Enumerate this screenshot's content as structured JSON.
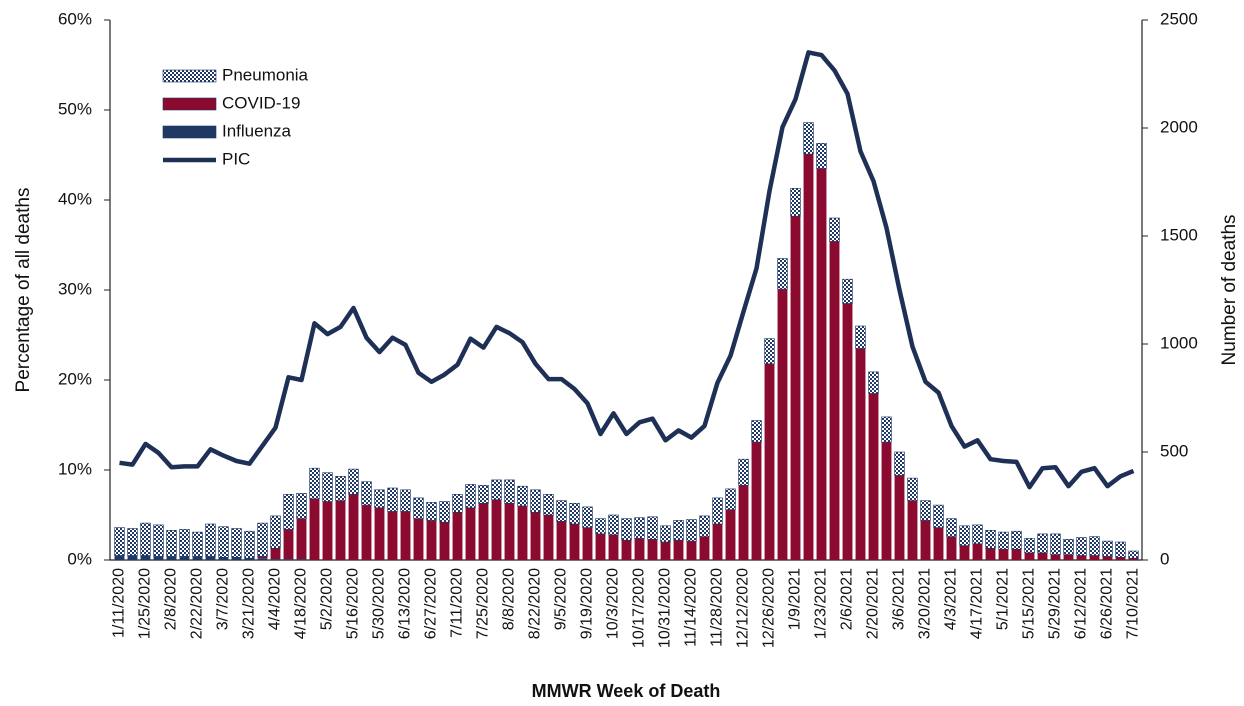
{
  "chart_data": {
    "type": "bar",
    "stacked": true,
    "x_label": "MMWR Week of Death",
    "y_label": "Percentage of all deaths",
    "y2_label": "Number of deaths",
    "categories": [
      "1/11/2020",
      null,
      "1/25/2020",
      null,
      "2/8/2020",
      null,
      "2/22/2020",
      null,
      "3/7/2020",
      null,
      "3/21/2020",
      null,
      "4/4/2020",
      null,
      "4/18/2020",
      null,
      "5/2/2020",
      null,
      "5/16/2020",
      null,
      "5/30/2020",
      null,
      "6/13/2020",
      null,
      "6/27/2020",
      null,
      "7/11/2020",
      null,
      "7/25/2020",
      null,
      "8/8/2020",
      null,
      "8/22/2020",
      null,
      "9/5/2020",
      null,
      "9/19/2020",
      null,
      "10/3/2020",
      null,
      "10/17/2020",
      null,
      "10/31/2020",
      null,
      "11/14/2020",
      null,
      "11/28/2020",
      null,
      "12/12/2020",
      null,
      "12/26/2020",
      null,
      "1/9/2021",
      null,
      "1/23/2021",
      null,
      "2/6/2021",
      null,
      "2/20/2021",
      null,
      "3/6/2021",
      null,
      "3/20/2021",
      null,
      "4/3/2021",
      null,
      "4/17/2021",
      null,
      "5/1/2021",
      null,
      "5/15/2021",
      null,
      "5/29/2021",
      null,
      "6/12/2021",
      null,
      "6/26/2021",
      null,
      "7/10/2021"
    ],
    "series": [
      {
        "name": "Influenza",
        "type": "bar",
        "color": "#1f3864",
        "values": [
          0.5,
          0.5,
          0.5,
          0.4,
          0.4,
          0.4,
          0.4,
          0.4,
          0.3,
          0.3,
          0.2,
          0.2,
          0.1,
          0.1,
          0.1,
          0,
          0,
          0,
          0,
          0,
          0,
          0,
          0,
          0,
          0,
          0,
          0,
          0,
          0,
          0,
          0,
          0,
          0,
          0,
          0,
          0,
          0,
          0,
          0,
          0,
          0,
          0,
          0,
          0,
          0,
          0,
          0,
          0,
          0,
          0,
          0,
          0,
          0,
          0,
          0,
          0,
          0,
          0,
          0,
          0,
          0,
          0,
          0,
          0,
          0,
          0,
          0,
          0,
          0,
          0,
          0,
          0,
          0,
          0,
          0,
          0,
          0,
          0,
          0
        ]
      },
      {
        "name": "COVID-19",
        "type": "bar",
        "color": "#8b0a2f",
        "values": [
          0,
          0,
          0,
          0,
          0,
          0,
          0,
          0,
          0,
          0,
          0,
          0.2,
          1.2,
          3.3,
          4.5,
          6.8,
          6.5,
          6.6,
          7.3,
          6.1,
          5.8,
          5.4,
          5.4,
          4.6,
          4.4,
          4.2,
          5.3,
          5.8,
          6.3,
          6.7,
          6.3,
          6.0,
          5.3,
          5.0,
          4.3,
          4.0,
          3.6,
          2.9,
          2.8,
          2.2,
          2.4,
          2.3,
          2.0,
          2.2,
          2.1,
          2.6,
          4.0,
          5.6,
          8.3,
          13.1,
          21.8,
          30.1,
          38.2,
          45.1,
          43.5,
          35.4,
          28.5,
          23.5,
          18.5,
          13.1,
          9.4,
          6.6,
          4.4,
          3.6,
          2.6,
          1.6,
          1.8,
          1.3,
          1.2,
          1.2,
          0.8,
          0.8,
          0.6,
          0.6,
          0.5,
          0.5,
          0.4,
          0.3,
          0.2
        ]
      },
      {
        "name": "Pneumonia",
        "type": "bar",
        "color": "#1f3864",
        "pattern": "checkered",
        "values": [
          3.1,
          3.0,
          3.6,
          3.5,
          2.9,
          3.0,
          2.7,
          3.6,
          3.4,
          3.2,
          3.0,
          3.7,
          3.6,
          3.9,
          2.8,
          3.4,
          3.2,
          2.7,
          2.8,
          2.6,
          2.0,
          2.6,
          2.4,
          2.3,
          2.0,
          2.3,
          2.0,
          2.6,
          2.0,
          2.2,
          2.6,
          2.2,
          2.5,
          2.3,
          2.3,
          2.3,
          2.3,
          1.7,
          2.2,
          2.4,
          2.3,
          2.5,
          1.8,
          2.2,
          2.4,
          2.3,
          2.9,
          2.3,
          2.9,
          2.4,
          2.8,
          3.4,
          3.1,
          3.5,
          2.8,
          2.6,
          2.7,
          2.5,
          2.4,
          2.8,
          2.6,
          2.5,
          2.2,
          2.5,
          2.0,
          2.2,
          2.1,
          2.0,
          1.9,
          2.0,
          1.6,
          2.1,
          2.3,
          1.7,
          2.0,
          2.1,
          1.7,
          1.7,
          0.8
        ]
      },
      {
        "name": "PIC",
        "type": "line",
        "color": "#1f3057",
        "values": [
          10.8,
          10.6,
          12.9,
          11.9,
          10.3,
          10.4,
          10.4,
          12.3,
          11.6,
          11.0,
          10.7,
          12.7,
          14.7,
          20.3,
          20.0,
          26.3,
          25.1,
          25.9,
          28.0,
          24.7,
          23.1,
          24.7,
          23.9,
          20.8,
          19.8,
          20.6,
          21.7,
          24.6,
          23.6,
          25.9,
          25.2,
          24.2,
          21.8,
          20.1,
          20.1,
          19.0,
          17.4,
          14.0,
          16.3,
          14.0,
          15.3,
          15.7,
          13.3,
          14.4,
          13.6,
          14.9,
          19.7,
          22.7,
          27.6,
          32.4,
          41.0,
          48.1,
          51.2,
          56.4,
          56.1,
          54.4,
          51.8,
          45.4,
          42.1,
          36.9,
          30.0,
          23.7,
          19.8,
          18.6,
          14.9,
          12.6,
          13.3,
          11.2,
          11.0,
          10.9,
          8.1,
          10.2,
          10.3,
          8.2,
          9.8,
          10.2,
          8.2,
          9.3,
          9.9
        ]
      }
    ],
    "ylim": [
      0,
      60
    ],
    "yticks": [
      {
        "value": 0,
        "label": "0%"
      },
      {
        "value": 10,
        "label": "10%"
      },
      {
        "value": 20,
        "label": "20%"
      },
      {
        "value": 30,
        "label": "30%"
      },
      {
        "value": 40,
        "label": "40%"
      },
      {
        "value": 50,
        "label": "50%"
      },
      {
        "value": 60,
        "label": "60%"
      }
    ],
    "y2lim": [
      0,
      2500
    ],
    "y2ticks": [
      0,
      500,
      1000,
      1500,
      2000,
      2500
    ],
    "grid": false,
    "legend": "upper left"
  }
}
